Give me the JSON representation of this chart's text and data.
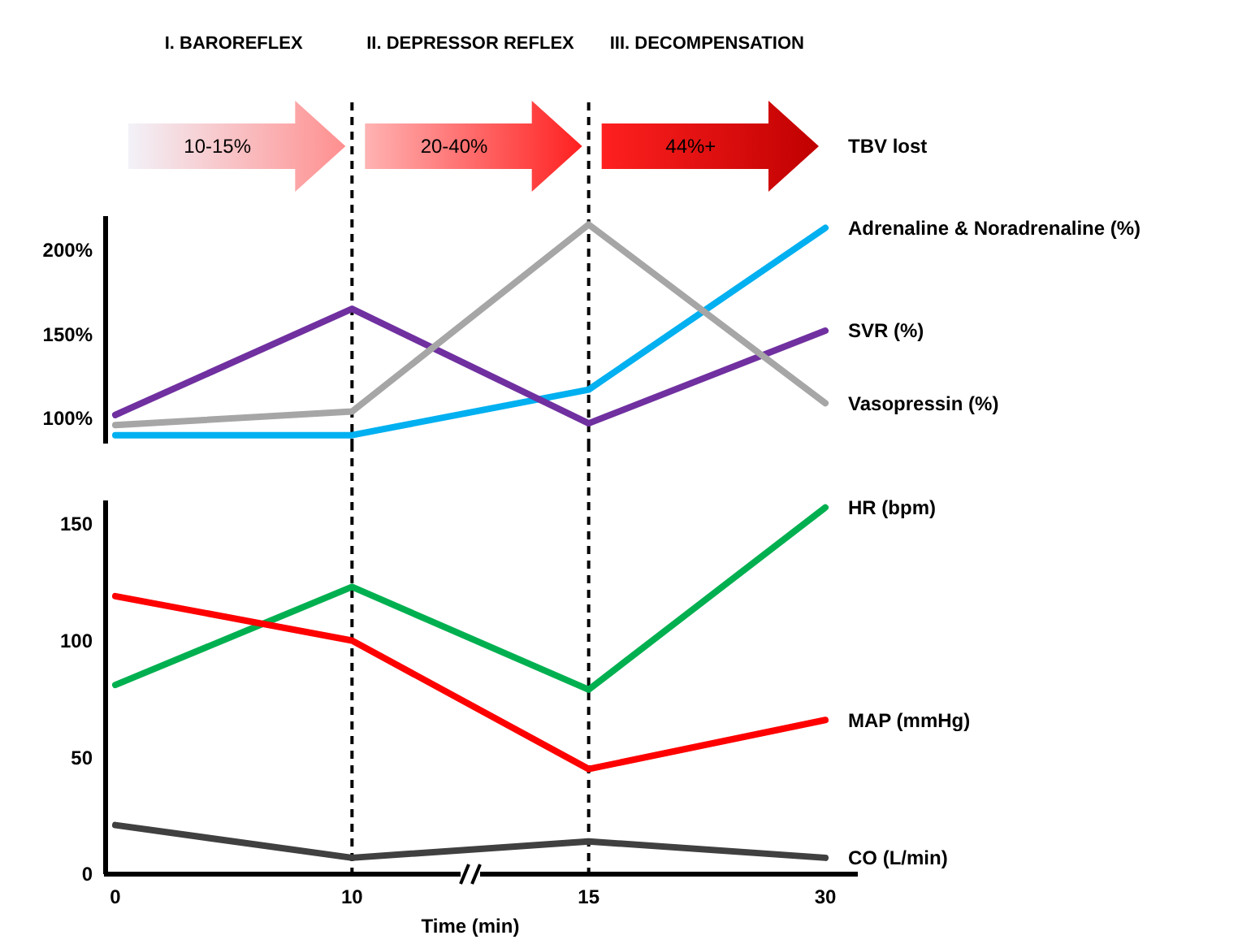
{
  "chart_data": [
    {
      "type": "line",
      "categories": [
        "0",
        "10",
        "15",
        "30"
      ],
      "ylim": [
        85,
        220
      ],
      "yticks": [
        {
          "value": 100,
          "label": "100%"
        },
        {
          "value": 150,
          "label": "150%"
        },
        {
          "value": 200,
          "label": "200%"
        }
      ],
      "tick_labels": "y",
      "grid": false,
      "marker": "none",
      "line_style": "solid",
      "ref_lines": [
        {
          "axis": "x",
          "value": "10",
          "line_style": "dashed",
          "color": "#000000"
        },
        {
          "axis": "x",
          "value": "15",
          "line_style": "dashed",
          "color": "#000000"
        }
      ],
      "annotations": [
        "I. BAROREFLEX",
        "II. DEPRESSOR REFLEX",
        "III. DECOMPENSATION",
        "10-15%",
        "20-40%",
        "44%+",
        "TBV lost"
      ],
      "series": [
        {
          "name": "Adrenaline & Noradrenaline (%)",
          "color": "#00b0f0",
          "values": [
            90,
            90,
            117,
            213
          ]
        },
        {
          "name": "SVR (%)",
          "color": "#7030a0",
          "values": [
            102,
            165,
            97,
            152
          ]
        },
        {
          "name": "Vasopressin (%)",
          "color": "#a6a6a6",
          "values": [
            96,
            104,
            215,
            109
          ]
        }
      ]
    },
    {
      "type": "line",
      "categories": [
        "0",
        "10",
        "15",
        "30"
      ],
      "xlabel": "Time (min)",
      "ylim": [
        0,
        160
      ],
      "yticks": [
        0,
        50,
        100,
        150
      ],
      "grid": false,
      "marker": "none",
      "line_style": "solid",
      "ref_lines": [
        {
          "axis": "x",
          "value": "10",
          "line_style": "dashed",
          "color": "#000000"
        },
        {
          "axis": "x",
          "value": "15",
          "line_style": "dashed",
          "color": "#000000"
        }
      ],
      "series": [
        {
          "name": "HR (bpm)",
          "color": "#00b050",
          "values": [
            81,
            123,
            79,
            157
          ]
        },
        {
          "name": "MAP (mmHg)",
          "color": "#ff0000",
          "values": [
            119,
            100,
            45,
            66
          ]
        },
        {
          "name": "CO (L/min)",
          "color": "#404040",
          "values": [
            21,
            7,
            14,
            7
          ]
        }
      ]
    }
  ]
}
